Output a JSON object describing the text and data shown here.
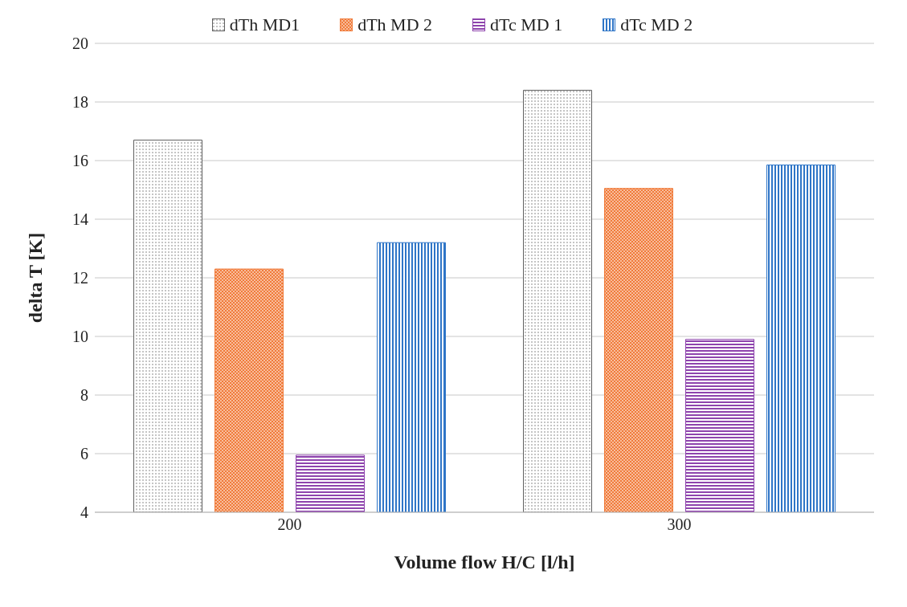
{
  "chart_data": {
    "type": "bar",
    "xlabel": "Volume flow H/C [l/h]",
    "ylabel": "delta T [K]",
    "categories": [
      "200",
      "300"
    ],
    "series": [
      {
        "name": "dTh MD1",
        "color": "#606060",
        "values": [
          16.7,
          18.4
        ]
      },
      {
        "name": "dTh MD 2",
        "color": "#f07b3a",
        "values": [
          12.3,
          15.05
        ]
      },
      {
        "name": "dTc MD 1",
        "color": "#8e44ad",
        "values": [
          5.95,
          9.9
        ]
      },
      {
        "name": "dTc MD 2",
        "color": "#2e75c7",
        "values": [
          13.2,
          15.85
        ]
      }
    ],
    "ylim": [
      4,
      20
    ],
    "yticks": [
      4,
      6,
      8,
      10,
      12,
      14,
      16,
      18,
      20
    ],
    "grid": "y",
    "legend": "top"
  }
}
